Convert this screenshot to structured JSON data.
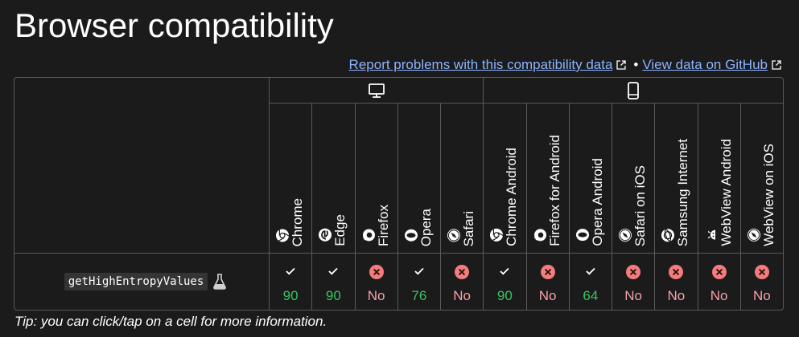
{
  "heading": "Browser compatibility",
  "links": {
    "report": "Report problems with this compatibility data",
    "separator": "•",
    "github": "View data on GitHub"
  },
  "platforms": [
    {
      "name": "desktop-icon"
    },
    {
      "name": "mobile-icon"
    }
  ],
  "browsers": [
    {
      "label": "Chrome",
      "icon": "chrome-icon"
    },
    {
      "label": "Edge",
      "icon": "edge-icon"
    },
    {
      "label": "Firefox",
      "icon": "firefox-icon"
    },
    {
      "label": "Opera",
      "icon": "opera-icon"
    },
    {
      "label": "Safari",
      "icon": "safari-icon"
    },
    {
      "label": "Chrome Android",
      "icon": "chrome-icon"
    },
    {
      "label": "Firefox for Android",
      "icon": "firefox-icon"
    },
    {
      "label": "Opera Android",
      "icon": "opera-icon"
    },
    {
      "label": "Safari on iOS",
      "icon": "safari-icon"
    },
    {
      "label": "Samsung Internet",
      "icon": "samsung-internet-icon"
    },
    {
      "label": "WebView Android",
      "icon": "android-icon"
    },
    {
      "label": "WebView on iOS",
      "icon": "safari-icon"
    }
  ],
  "feature": {
    "name": "getHighEntropyValues",
    "badge_icon": "experimental-flask-icon",
    "support": [
      {
        "supported": true,
        "version": "90"
      },
      {
        "supported": true,
        "version": "90"
      },
      {
        "supported": false,
        "version": "No"
      },
      {
        "supported": true,
        "version": "76"
      },
      {
        "supported": false,
        "version": "No"
      },
      {
        "supported": true,
        "version": "90"
      },
      {
        "supported": false,
        "version": "No"
      },
      {
        "supported": true,
        "version": "64"
      },
      {
        "supported": false,
        "version": "No"
      },
      {
        "supported": false,
        "version": "No"
      },
      {
        "supported": false,
        "version": "No"
      },
      {
        "supported": false,
        "version": "No"
      }
    ]
  },
  "tip": "Tip: you can click/tap on a cell for more information.",
  "colors": {
    "background": "#1b1b1b",
    "link": "#8cb4ff",
    "supported": "#3bc264",
    "unsupported": "#f4a0a7",
    "no_badge": "#f47c7c"
  }
}
